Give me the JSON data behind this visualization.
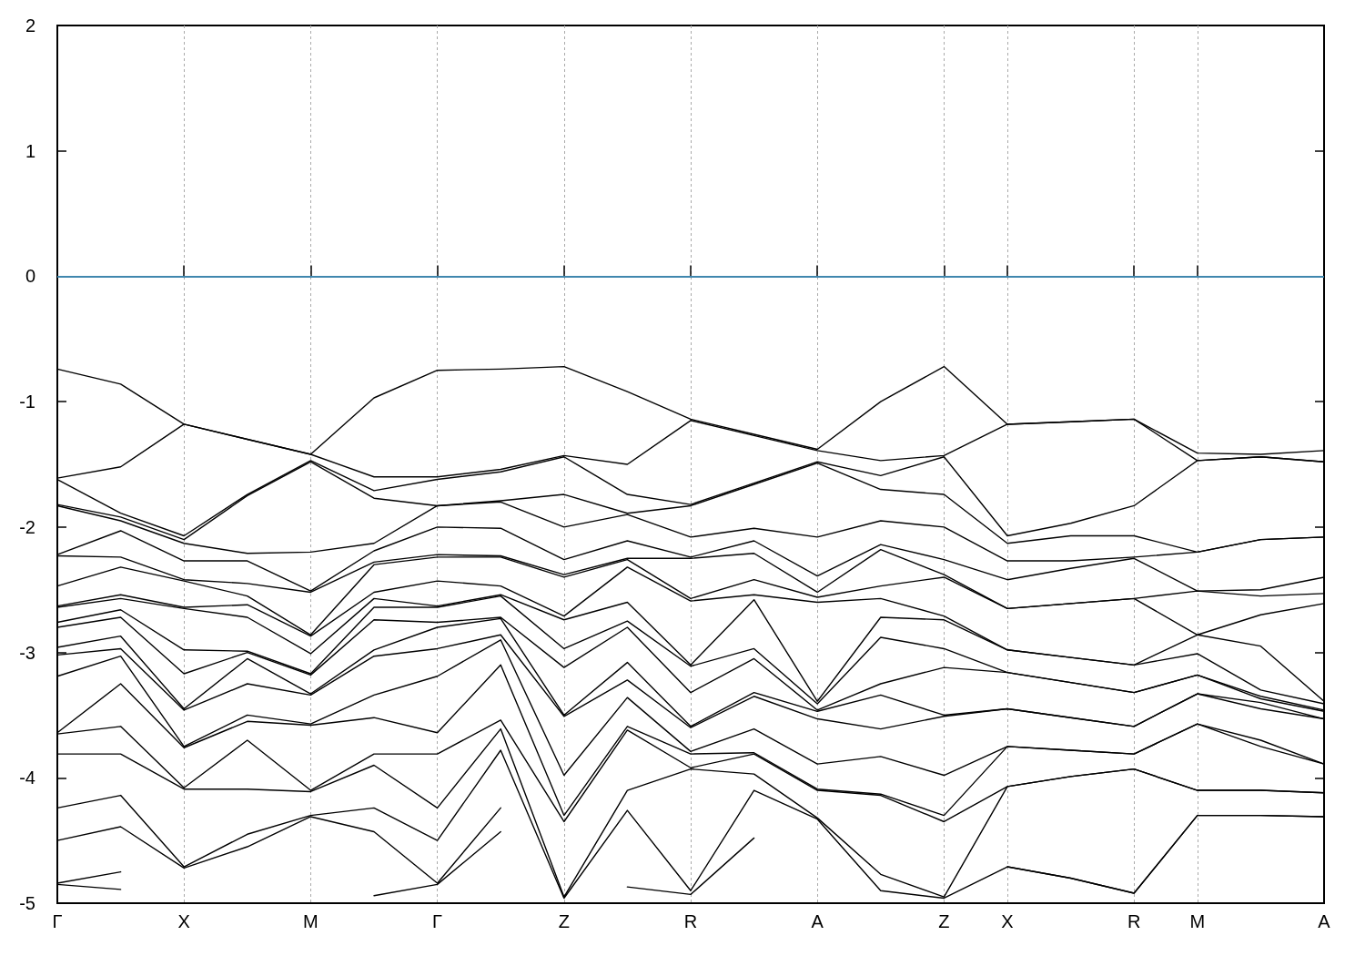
{
  "chart_data": {
    "type": "line",
    "categories": [
      "Γ",
      null,
      "X",
      null,
      "M",
      null,
      "Γ",
      null,
      "Z",
      null,
      "R",
      null,
      "A",
      null,
      "Z",
      "X",
      null,
      "R",
      "M",
      null,
      "A"
    ],
    "ylim": [
      -5,
      2
    ],
    "yticks": [
      -5,
      -4,
      -3,
      -2,
      -1,
      0,
      1,
      2
    ],
    "grid": "x",
    "marker": "none",
    "ref_lines": [
      {
        "axis": "y",
        "value": 0,
        "label": null,
        "color": "#56b4e9"
      }
    ],
    "series": [
      {
        "color": "#000000",
        "values": [
          -0.74,
          -0.86,
          -1.18,
          -1.3,
          -1.42,
          -0.97,
          -0.75,
          -0.74,
          -0.72,
          -0.92,
          -1.14,
          -1.26,
          -1.38,
          -1.0,
          -0.72,
          -1.18,
          -1.16,
          -1.14,
          -1.41,
          -1.42,
          -1.39
        ]
      },
      {
        "color": "#000000",
        "values": [
          -1.61,
          -1.52,
          -1.18,
          -1.3,
          -1.42,
          -1.6,
          -1.6,
          -1.54,
          -1.43,
          -1.5,
          -1.15,
          -1.27,
          -1.39,
          -1.47,
          -1.43,
          -1.18,
          -1.16,
          -1.14,
          -1.47,
          -1.44,
          -1.48
        ]
      },
      {
        "color": "#000000",
        "values": [
          -1.62,
          -1.89,
          -2.07,
          -1.74,
          -1.47,
          -1.71,
          -1.62,
          -1.56,
          -1.44,
          -1.74,
          -1.82,
          -1.65,
          -1.48,
          -1.59,
          -1.44,
          -2.07,
          -1.97,
          -1.83,
          -1.47,
          -1.44,
          -1.48
        ]
      },
      {
        "color": "#000000",
        "values": [
          -1.82,
          -1.92,
          -2.1,
          -1.75,
          -1.48,
          -1.77,
          -1.83,
          -1.79,
          -1.74,
          -1.89,
          -1.83,
          -1.66,
          -1.49,
          -1.7,
          -1.74,
          -2.13,
          -2.07,
          -2.07,
          -2.2,
          -2.1,
          -2.08
        ]
      },
      {
        "color": "#000000",
        "values": [
          -1.83,
          -1.95,
          -2.13,
          -2.21,
          -2.2,
          -2.13,
          -1.83,
          -1.8,
          -2.0,
          -1.9,
          -2.08,
          -2.01,
          -2.08,
          -1.95,
          -2.0,
          -2.27,
          -2.27,
          -2.24,
          -2.2,
          -2.1,
          -2.08
        ]
      },
      {
        "color": "#000000",
        "values": [
          -2.22,
          -2.03,
          -2.27,
          -2.27,
          -2.51,
          -2.19,
          -2.0,
          -2.01,
          -2.26,
          -2.11,
          -2.24,
          -2.11,
          -2.39,
          -2.14,
          -2.26,
          -2.42,
          -2.33,
          -2.25,
          -2.51,
          -2.5,
          -2.4
        ]
      },
      {
        "color": "#000000",
        "values": [
          -2.23,
          -2.24,
          -2.42,
          -2.45,
          -2.52,
          -2.28,
          -2.22,
          -2.23,
          -2.38,
          -2.25,
          -2.25,
          -2.21,
          -2.52,
          -2.18,
          -2.38,
          -2.65,
          -2.61,
          -2.57,
          -2.51,
          -2.55,
          -2.53
        ]
      },
      {
        "color": "#000000",
        "values": [
          -2.47,
          -2.32,
          -2.43,
          -2.55,
          -2.86,
          -2.3,
          -2.24,
          -2.24,
          -2.4,
          -2.26,
          -2.57,
          -2.42,
          -2.56,
          -2.47,
          -2.4,
          -2.65,
          -2.61,
          -2.57,
          -2.86,
          -2.7,
          -2.61
        ]
      },
      {
        "color": "#000000",
        "values": [
          -2.63,
          -2.54,
          -2.64,
          -2.62,
          -2.87,
          -2.52,
          -2.43,
          -2.47,
          -2.71,
          -2.32,
          -2.59,
          -2.54,
          -2.6,
          -2.57,
          -2.71,
          -2.98,
          -3.04,
          -3.1,
          -2.86,
          -2.95,
          -3.39
        ]
      },
      {
        "color": "#000000",
        "values": [
          -2.64,
          -2.57,
          -2.65,
          -2.72,
          -3.01,
          -2.57,
          -2.63,
          -2.54,
          -2.74,
          -2.6,
          -3.1,
          -2.58,
          -3.39,
          -2.72,
          -2.74,
          -2.98,
          -3.04,
          -3.1,
          -3.01,
          -3.3,
          -3.41
        ]
      },
      {
        "color": "#000000",
        "values": [
          -2.76,
          -2.66,
          -2.98,
          -2.99,
          -3.17,
          -2.64,
          -2.64,
          -2.55,
          -2.97,
          -2.75,
          -3.11,
          -2.97,
          -3.41,
          -2.88,
          -2.97,
          -3.16,
          -3.24,
          -3.32,
          -3.18,
          -3.35,
          -3.46
        ]
      },
      {
        "color": "#000000",
        "values": [
          -2.8,
          -2.72,
          -3.17,
          -3.0,
          -3.18,
          -2.74,
          -2.76,
          -2.72,
          -3.12,
          -2.8,
          -3.32,
          -3.05,
          -3.46,
          -3.25,
          -3.12,
          -3.16,
          -3.24,
          -3.32,
          -3.18,
          -3.37,
          -3.47
        ]
      },
      {
        "color": "#000000",
        "values": [
          -2.96,
          -2.87,
          -3.45,
          -3.05,
          -3.33,
          -2.98,
          -2.8,
          -2.73,
          -3.5,
          -3.08,
          -3.59,
          -3.32,
          -3.47,
          -3.34,
          -3.5,
          -3.45,
          -3.52,
          -3.59,
          -3.33,
          -3.4,
          -3.53
        ]
      },
      {
        "color": "#000000",
        "values": [
          -3.02,
          -2.97,
          -3.46,
          -3.25,
          -3.34,
          -3.03,
          -2.97,
          -2.86,
          -3.51,
          -3.22,
          -3.6,
          -3.35,
          -3.53,
          -3.61,
          -3.51,
          -3.45,
          -3.52,
          -3.59,
          -3.33,
          -3.45,
          -3.53
        ]
      },
      {
        "color": "#000000",
        "values": [
          -3.19,
          -3.03,
          -3.75,
          -3.5,
          -3.57,
          -3.34,
          -3.19,
          -2.9,
          -3.98,
          -3.36,
          -3.79,
          -3.61,
          -3.89,
          -3.83,
          -3.98,
          -3.75,
          -3.78,
          -3.81,
          -3.57,
          -3.7,
          -3.89
        ]
      },
      {
        "color": "#000000",
        "values": [
          -3.64,
          -3.25,
          -3.76,
          -3.55,
          -3.58,
          -3.52,
          -3.64,
          -3.1,
          -4.3,
          -3.59,
          -3.81,
          -3.8,
          -4.09,
          -4.13,
          -4.3,
          -3.75,
          -3.78,
          -3.81,
          -3.57,
          -3.75,
          -3.89
        ]
      },
      {
        "color": "#000000",
        "values": [
          -3.65,
          -3.59,
          -4.08,
          -3.7,
          -4.1,
          -3.81,
          -3.81,
          -3.54,
          -4.35,
          -3.62,
          -3.92,
          -3.81,
          -4.1,
          -4.14,
          -4.35,
          -4.07,
          -3.99,
          -3.93,
          -4.1,
          -4.1,
          -4.12
        ]
      },
      {
        "color": "#000000",
        "values": [
          -3.81,
          -3.81,
          -4.09,
          -4.09,
          -4.11,
          -3.9,
          -4.24,
          -3.61,
          -4.95,
          -4.1,
          -3.93,
          -3.97,
          -4.32,
          -4.77,
          -4.95,
          -4.07,
          -3.99,
          -3.93,
          -4.1,
          -4.1,
          -4.12
        ]
      },
      {
        "color": "#000000",
        "values": [
          -4.24,
          -4.14,
          -4.71,
          -4.45,
          -4.3,
          -4.24,
          -4.5,
          -3.78,
          -4.96,
          -4.26,
          -4.9,
          -4.1,
          -4.33,
          -4.9,
          -4.96,
          -4.71,
          -4.8,
          -4.92,
          -4.3,
          -4.3,
          -4.31
        ]
      },
      {
        "color": "#000000",
        "values": [
          -4.5,
          -4.39,
          -4.72,
          -4.55,
          -4.31,
          -4.43,
          -4.84,
          -4.24,
          null,
          -4.87,
          -4.93,
          -4.48,
          null,
          null,
          null,
          -4.71,
          -4.8,
          -4.92,
          -4.3,
          -4.3,
          -4.31
        ]
      },
      {
        "color": "#000000",
        "values": [
          -4.84,
          -4.75,
          null,
          null,
          null,
          -4.94,
          -4.85,
          -4.43,
          null,
          null,
          null,
          null,
          null,
          null,
          null,
          null,
          null,
          null,
          null,
          null,
          null
        ]
      },
      {
        "color": "#000000",
        "values": [
          -4.85,
          -4.89,
          null,
          null,
          null,
          null,
          null,
          null,
          null,
          null,
          null,
          null,
          null,
          null,
          null,
          null,
          null,
          null,
          null,
          null,
          null
        ]
      }
    ]
  }
}
